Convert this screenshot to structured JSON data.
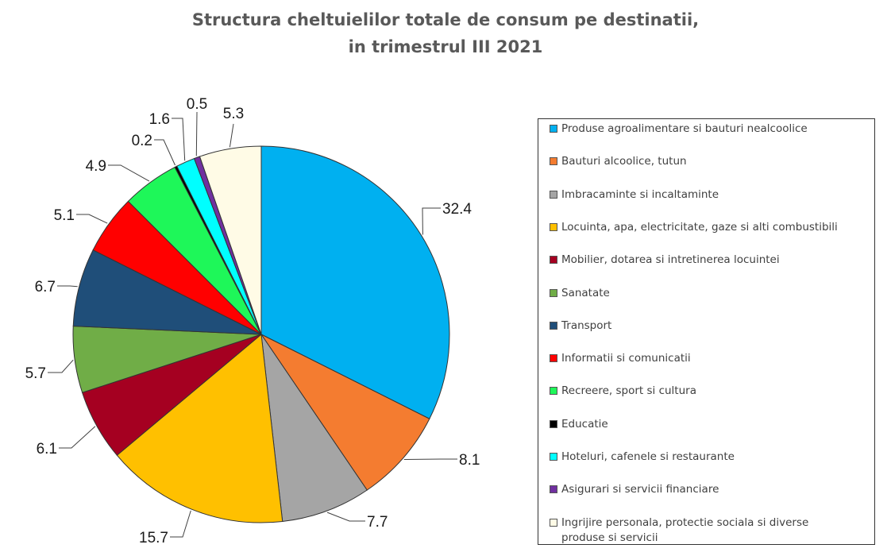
{
  "title": {
    "line1": "Structura cheltuielilor totale de consum pe destinatii,",
    "line2": "in trimestrul III 2021"
  },
  "chart_data": {
    "type": "pie",
    "title": "Structura cheltuielilor totale de consum pe destinatii, in trimestrul III 2021",
    "start": "12 o'clock, clockwise",
    "legend_position": "right",
    "slices": [
      {
        "label": "Produse agroalimentare si bauturi nealcoolice",
        "value": 32.4,
        "value_label": "32.4",
        "color": "#00B0F0"
      },
      {
        "label": "Bauturi alcoolice, tutun",
        "value": 8.1,
        "value_label": "8.1",
        "color": "#F47C30"
      },
      {
        "label": "Imbracaminte si incaltaminte",
        "value": 7.7,
        "value_label": "7.7",
        "color": "#A5A5A5"
      },
      {
        "label": "Locuinta, apa, electricitate, gaze si alti combustibili",
        "value": 15.7,
        "value_label": "15.7",
        "color": "#FFC000"
      },
      {
        "label": "Mobilier, dotarea si intretinerea locuintei",
        "value": 6.1,
        "value_label": "6.1",
        "color": "#A50021"
      },
      {
        "label": "Sanatate",
        "value": 5.7,
        "value_label": "5.7",
        "color": "#70AD47"
      },
      {
        "label": "Transport",
        "value": 6.7,
        "value_label": "6.7",
        "color": "#1F4E79"
      },
      {
        "label": "Informatii si comunicatii",
        "value": 5.1,
        "value_label": "5.1",
        "color": "#FF0000"
      },
      {
        "label": "Recreere, sport si cultura",
        "value": 4.9,
        "value_label": "4.9",
        "color": "#1EF759"
      },
      {
        "label": "Educatie",
        "value": 0.2,
        "value_label": "0.2",
        "color": "#000000"
      },
      {
        "label": "Hoteluri, cafenele si restaurante",
        "value": 1.6,
        "value_label": "1.6",
        "color": "#00FFFF"
      },
      {
        "label": "Asigurari si servicii financiare",
        "value": 0.5,
        "value_label": "0.5",
        "color": "#7030A0"
      },
      {
        "label": "Ingrijire personala, protectie sociala si diverse produse si servicii",
        "value": 5.3,
        "value_label": "5.3",
        "color": "#FFFBE6"
      }
    ]
  },
  "legend": {
    "items": [
      {
        "lines": [
          "Produse agroalimentare si bauturi nealcoolice"
        ],
        "color": "#00B0F0"
      },
      {
        "lines": [
          "Bauturi alcoolice, tutun"
        ],
        "color": "#F47C30"
      },
      {
        "lines": [
          "Imbracaminte si incaltaminte"
        ],
        "color": "#A5A5A5"
      },
      {
        "lines": [
          "Locuinta, apa, electricitate, gaze si alti combustibili"
        ],
        "color": "#FFC000"
      },
      {
        "lines": [
          "Mobilier, dotarea si intretinerea locuintei"
        ],
        "color": "#A50021"
      },
      {
        "lines": [
          "Sanatate"
        ],
        "color": "#70AD47"
      },
      {
        "lines": [
          "Transport"
        ],
        "color": "#1F4E79"
      },
      {
        "lines": [
          "Informatii si comunicatii"
        ],
        "color": "#FF0000"
      },
      {
        "lines": [
          "Recreere, sport si cultura"
        ],
        "color": "#1EF759"
      },
      {
        "lines": [
          "Educatie"
        ],
        "color": "#000000"
      },
      {
        "lines": [
          "Hoteluri, cafenele si restaurante"
        ],
        "color": "#00FFFF"
      },
      {
        "lines": [
          "Asigurari si servicii financiare"
        ],
        "color": "#7030A0"
      },
      {
        "lines": [
          "Ingrijire personala, protectie sociala si diverse",
          "produse si servicii"
        ],
        "color": "#FFFBE6"
      }
    ]
  }
}
